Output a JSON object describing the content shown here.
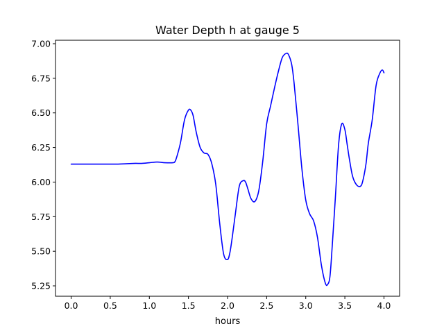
{
  "chart_data": {
    "type": "line",
    "title": "Water Depth h at gauge 5",
    "xlabel": "hours",
    "ylabel": "",
    "xlim": [
      -0.2,
      4.2
    ],
    "ylim": [
      5.175,
      7.025
    ],
    "xticks": [
      0.0,
      0.5,
      1.0,
      1.5,
      2.0,
      2.5,
      3.0,
      3.5,
      4.0
    ],
    "xtick_labels": [
      "0.0",
      "0.5",
      "1.0",
      "1.5",
      "2.0",
      "2.5",
      "3.0",
      "3.5",
      "4.0"
    ],
    "yticks": [
      5.25,
      5.5,
      5.75,
      6.0,
      6.25,
      6.5,
      6.75,
      7.0
    ],
    "ytick_labels": [
      "5.25",
      "5.50",
      "5.75",
      "6.00",
      "6.25",
      "6.50",
      "6.75",
      "7.00"
    ],
    "grid": false,
    "series": [
      {
        "name": "",
        "color": "#0000ff",
        "x": [
          0.0,
          0.2,
          0.4,
          0.6,
          0.8,
          0.9,
          1.0,
          1.1,
          1.2,
          1.3,
          1.33,
          1.36,
          1.4,
          1.45,
          1.5,
          1.53,
          1.56,
          1.6,
          1.65,
          1.7,
          1.75,
          1.8,
          1.85,
          1.9,
          1.95,
          2.0,
          2.03,
          2.06,
          2.1,
          2.15,
          2.2,
          2.23,
          2.26,
          2.3,
          2.35,
          2.4,
          2.45,
          2.5,
          2.55,
          2.6,
          2.65,
          2.7,
          2.75,
          2.78,
          2.82,
          2.85,
          2.9,
          2.95,
          3.0,
          3.05,
          3.1,
          3.15,
          3.2,
          3.25,
          3.28,
          3.31,
          3.34,
          3.38,
          3.42,
          3.46,
          3.5,
          3.53,
          3.56,
          3.6,
          3.65,
          3.7,
          3.73,
          3.77,
          3.8,
          3.85,
          3.9,
          3.95,
          3.98,
          4.0
        ],
        "y": [
          6.13,
          6.13,
          6.13,
          6.13,
          6.135,
          6.135,
          6.14,
          6.145,
          6.14,
          6.14,
          6.15,
          6.2,
          6.29,
          6.45,
          6.52,
          6.52,
          6.48,
          6.36,
          6.25,
          6.21,
          6.2,
          6.13,
          5.98,
          5.7,
          5.48,
          5.44,
          5.49,
          5.6,
          5.77,
          5.97,
          6.01,
          6.0,
          5.95,
          5.88,
          5.86,
          5.94,
          6.15,
          6.42,
          6.55,
          6.68,
          6.8,
          6.9,
          6.93,
          6.92,
          6.85,
          6.72,
          6.42,
          6.1,
          5.87,
          5.77,
          5.72,
          5.6,
          5.4,
          5.27,
          5.26,
          5.32,
          5.55,
          5.9,
          6.27,
          6.42,
          6.38,
          6.27,
          6.16,
          6.04,
          5.98,
          5.97,
          6.01,
          6.13,
          6.28,
          6.45,
          6.7,
          6.79,
          6.81,
          6.79
        ]
      }
    ]
  }
}
